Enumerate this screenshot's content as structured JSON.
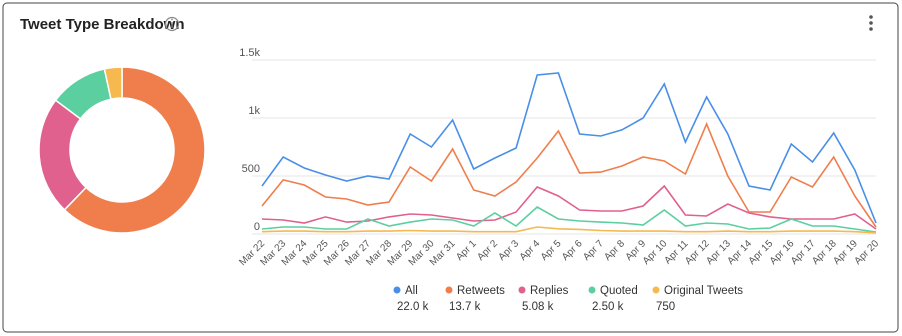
{
  "chart_data": {
    "type": "line",
    "title": "Tweet Type Breakdown",
    "categories": [
      "Mar 22",
      "Mar 23",
      "Mar 24",
      "Mar 25",
      "Mar 26",
      "Mar 27",
      "Mar 28",
      "Mar 29",
      "Mar 30",
      "Mar 31",
      "Apr 1",
      "Apr 2",
      "Apr 3",
      "Apr 4",
      "Apr 5",
      "Apr 6",
      "Apr 7",
      "Apr 8",
      "Apr 9",
      "Apr 10",
      "Apr 11",
      "Apr 12",
      "Apr 13",
      "Apr 14",
      "Apr 15",
      "Apr 16",
      "Apr 17",
      "Apr 18",
      "Apr 19",
      "Apr 20"
    ],
    "series": [
      {
        "name": "All",
        "color": "#4a8fe7",
        "values": [
          414,
          664,
          569,
          509,
          457,
          500,
          474,
          862,
          750,
          983,
          560,
          655,
          741,
          1371,
          1388,
          862,
          845,
          897,
          1000,
          1293,
          793,
          1181,
          862,
          414,
          379,
          776,
          621,
          871,
          552,
          95
        ]
      },
      {
        "name": "Retweets",
        "color": "#ef7e4c",
        "values": [
          241,
          466,
          422,
          319,
          302,
          250,
          276,
          578,
          457,
          733,
          379,
          328,
          448,
          655,
          888,
          526,
          534,
          586,
          664,
          629,
          517,
          948,
          500,
          190,
          190,
          491,
          405,
          664,
          328,
          60
        ]
      },
      {
        "name": "Replies",
        "color": "#e0608e",
        "values": [
          129,
          121,
          95,
          147,
          103,
          112,
          147,
          172,
          164,
          138,
          112,
          121,
          190,
          405,
          328,
          207,
          198,
          198,
          241,
          414,
          164,
          155,
          259,
          181,
          147,
          129,
          129,
          129,
          172,
          43
        ]
      },
      {
        "name": "Quoted",
        "color": "#5ccfa0",
        "values": [
          43,
          60,
          60,
          43,
          43,
          129,
          69,
          103,
          129,
          121,
          69,
          181,
          69,
          233,
          129,
          112,
          103,
          95,
          78,
          207,
          69,
          95,
          86,
          43,
          52,
          129,
          69,
          69,
          43,
          17
        ]
      },
      {
        "name": "Original Tweets",
        "color": "#f5b94f",
        "values": [
          20,
          25,
          25,
          20,
          20,
          25,
          25,
          30,
          25,
          25,
          20,
          20,
          20,
          60,
          45,
          40,
          30,
          25,
          25,
          25,
          20,
          20,
          25,
          20,
          20,
          25,
          25,
          25,
          20,
          10
        ]
      }
    ],
    "totals": [
      22000,
      13700,
      5080,
      2500,
      750
    ],
    "total_labels": [
      "22.0 k",
      "13.7 k",
      "5.08 k",
      "2.50 k",
      "750"
    ],
    "ylim": [
      0,
      1500
    ],
    "yticks": [
      0,
      500,
      {
        "value": 1000,
        "label": "1k"
      },
      {
        "value": 1500,
        "label": "1.5k"
      }
    ],
    "grid": true
  }
}
